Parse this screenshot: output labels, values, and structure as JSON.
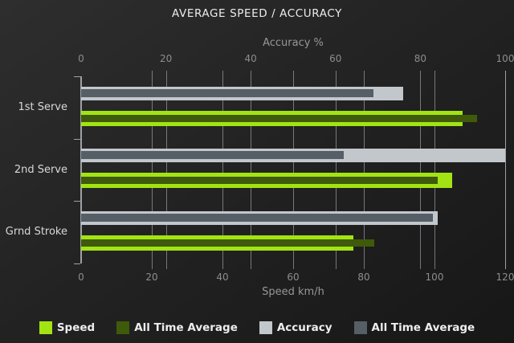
{
  "title": "AVERAGE SPEED / ACCURACY",
  "chart_data": {
    "type": "bar",
    "orientation": "horizontal",
    "categories": [
      "1st Serve",
      "2nd Serve",
      "Grnd Stroke"
    ],
    "series": [
      {
        "name": "Speed",
        "axis": "bottom",
        "role": "current",
        "color": "#a2e413",
        "values": [
          108,
          105,
          77
        ]
      },
      {
        "name": "All Time Average",
        "axis": "bottom",
        "role": "overlay",
        "color": "#3f5a0a",
        "values": [
          112,
          101,
          83
        ]
      },
      {
        "name": "Accuracy",
        "axis": "top",
        "role": "current",
        "color": "#c2c7cc",
        "values": [
          76,
          100,
          84
        ]
      },
      {
        "name": "All Time Average",
        "axis": "top",
        "role": "overlay",
        "color": "#565e66",
        "values": [
          69,
          62,
          83
        ]
      }
    ],
    "top_axis": {
      "label": "Accuracy %",
      "min": 0,
      "max": 100,
      "ticks": [
        0,
        20,
        40,
        60,
        80,
        100
      ]
    },
    "bottom_axis": {
      "label": "Speed km/h",
      "min": 0,
      "max": 120,
      "ticks": [
        0,
        20,
        40,
        60,
        80,
        100,
        120
      ]
    },
    "grid": true,
    "legend_position": "bottom"
  },
  "legend": {
    "items": [
      {
        "label": "Speed",
        "color": "#a2e413"
      },
      {
        "label": "All Time Average",
        "color": "#3f5a0a"
      },
      {
        "label": "Accuracy",
        "color": "#c2c7cc"
      },
      {
        "label": "All Time Average",
        "color": "#565e66"
      }
    ]
  },
  "colors": {
    "background_top": "#2e2e2e",
    "background_bottom": "#171717",
    "gridline": "#bcc1c6",
    "tick_label": "#8d8d8d",
    "axis_title": "#979797",
    "category_label": "#d8d8d8",
    "title": "#ececec",
    "legend_text": "#ededed"
  }
}
